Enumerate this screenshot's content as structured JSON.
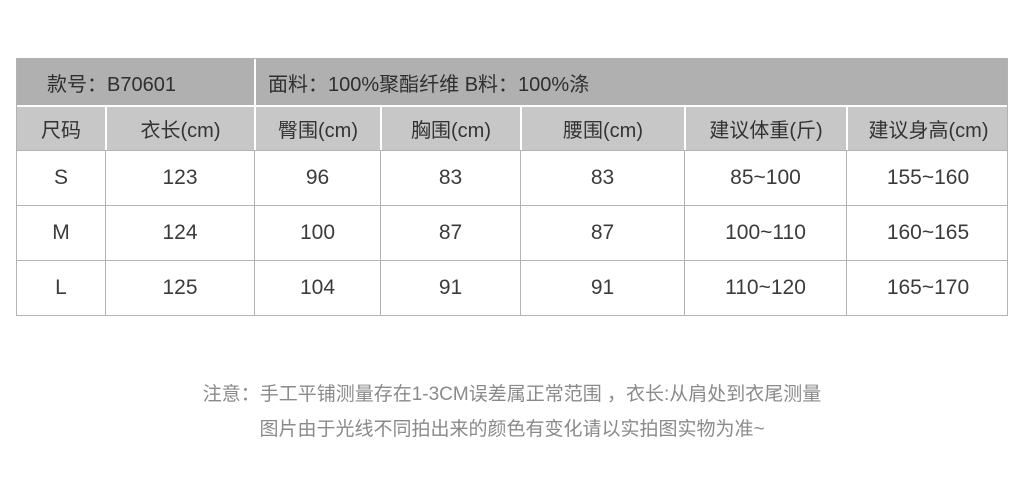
{
  "table": {
    "info": {
      "model": "款号：B70601",
      "fabric": "面料：100%聚酯纤维 B料：100%涤"
    },
    "headers": [
      "尺码",
      "衣长(cm)",
      "臀围(cm)",
      "胸围(cm)",
      "腰围(cm)",
      "建议体重(斤)",
      "建议身高(cm)"
    ],
    "rows": [
      [
        "S",
        "123",
        "96",
        "83",
        "83",
        "85~100",
        "155~160"
      ],
      [
        "M",
        "124",
        "100",
        "87",
        "87",
        "100~110",
        "160~165"
      ],
      [
        "L",
        "125",
        "104",
        "91",
        "91",
        "110~120",
        "165~170"
      ]
    ]
  },
  "notes": {
    "line1": "注意：手工平铺测量存在1-3CM误差属正常范围 ，衣长:从肩处到衣尾测量",
    "line2": "图片由于光线不同拍出来的颜色有变化请以实拍图实物为准~"
  },
  "colors": {
    "info_row_bg": "#b0b0b0",
    "header_row_bg": "#c7c7c7",
    "border": "#b3b3b3",
    "table_text": "#3b3b3b",
    "note_text": "#8a8a8a",
    "page_bg": "#ffffff"
  }
}
